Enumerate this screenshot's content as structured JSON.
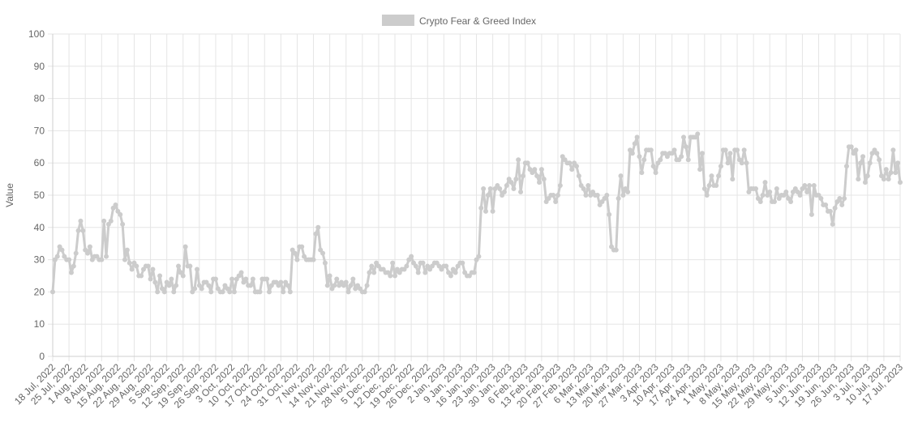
{
  "chart_data": {
    "type": "line",
    "y_axis_label": "Value",
    "ylim": [
      0,
      100
    ],
    "yticks": [
      0,
      10,
      20,
      30,
      40,
      50,
      60,
      70,
      80,
      90,
      100
    ],
    "grid": true,
    "legend_position": "top",
    "categories": [
      "18 Jul, 2022",
      null,
      null,
      null,
      null,
      null,
      null,
      "25 Jul, 2022",
      null,
      null,
      null,
      null,
      null,
      null,
      "1 Aug, 2022",
      null,
      null,
      null,
      null,
      null,
      null,
      "8 Aug, 2022",
      null,
      null,
      null,
      null,
      null,
      null,
      "15 Aug, 2022",
      null,
      null,
      null,
      null,
      null,
      null,
      "22 Aug, 2022",
      null,
      null,
      null,
      null,
      null,
      null,
      "29 Aug, 2022",
      null,
      null,
      null,
      null,
      null,
      null,
      "5 Sep, 2022",
      null,
      null,
      null,
      null,
      null,
      null,
      "12 Sep, 2022",
      null,
      null,
      null,
      null,
      null,
      null,
      "19 Sep, 2022",
      null,
      null,
      null,
      null,
      null,
      null,
      "26 Sep, 2022",
      null,
      null,
      null,
      null,
      null,
      null,
      "3 Oct, 2022",
      null,
      null,
      null,
      null,
      null,
      null,
      "10 Oct, 2022",
      null,
      null,
      null,
      null,
      null,
      null,
      "17 Oct, 2022",
      null,
      null,
      null,
      null,
      null,
      null,
      "24 Oct, 2022",
      null,
      null,
      null,
      null,
      null,
      null,
      "31 Oct, 2022",
      null,
      null,
      null,
      null,
      null,
      null,
      "7 Nov, 2022",
      null,
      null,
      null,
      null,
      null,
      null,
      "14 Nov, 2022",
      null,
      null,
      null,
      null,
      null,
      null,
      "21 Nov, 2022",
      null,
      null,
      null,
      null,
      null,
      null,
      "28 Nov, 2022",
      null,
      null,
      null,
      null,
      null,
      null,
      "5 Dec, 2022",
      null,
      null,
      null,
      null,
      null,
      null,
      "12 Dec, 2022",
      null,
      null,
      null,
      null,
      null,
      null,
      "19 Dec, 2022",
      null,
      null,
      null,
      null,
      null,
      null,
      "26 Dec, 2022",
      null,
      null,
      null,
      null,
      null,
      null,
      "2 Jan, 2023",
      null,
      null,
      null,
      null,
      null,
      null,
      "9 Jan, 2023",
      null,
      null,
      null,
      null,
      null,
      null,
      "16 Jan, 2023",
      null,
      null,
      null,
      null,
      null,
      null,
      "23 Jan, 2023",
      null,
      null,
      null,
      null,
      null,
      null,
      "30 Jan, 2023",
      null,
      null,
      null,
      null,
      null,
      null,
      "6 Feb, 2023",
      null,
      null,
      null,
      null,
      null,
      null,
      "13 Feb, 2023",
      null,
      null,
      null,
      null,
      null,
      null,
      "20 Feb, 2023",
      null,
      null,
      null,
      null,
      null,
      null,
      "27 Feb, 2023",
      null,
      null,
      null,
      null,
      null,
      null,
      "6 Mar, 2023",
      null,
      null,
      null,
      null,
      null,
      null,
      "13 Mar, 2023",
      null,
      null,
      null,
      null,
      null,
      null,
      "20 Mar, 2023",
      null,
      null,
      null,
      null,
      null,
      null,
      "27 Mar, 2023",
      null,
      null,
      null,
      null,
      null,
      null,
      "3 Apr, 2023",
      null,
      null,
      null,
      null,
      null,
      null,
      "10 Apr, 2023",
      null,
      null,
      null,
      null,
      null,
      null,
      "17 Apr, 2023",
      null,
      null,
      null,
      null,
      null,
      null,
      "24 Apr, 2023",
      null,
      null,
      null,
      null,
      null,
      null,
      "1 May, 2023",
      null,
      null,
      null,
      null,
      null,
      null,
      "8 May, 2023",
      null,
      null,
      null,
      null,
      null,
      null,
      "15 May, 2023",
      null,
      null,
      null,
      null,
      null,
      null,
      "22 May, 2023",
      null,
      null,
      null,
      null,
      null,
      null,
      "29 May, 2023",
      null,
      null,
      null,
      null,
      null,
      null,
      "5 Jun, 2023",
      null,
      null,
      null,
      null,
      null,
      null,
      "12 Jun, 2023",
      null,
      null,
      null,
      null,
      null,
      null,
      "19 Jun, 2023",
      null,
      null,
      null,
      null,
      null,
      null,
      "26 Jun, 2023",
      null,
      null,
      null,
      null,
      null,
      null,
      "3 Jul, 2023",
      null,
      null,
      null,
      null,
      null,
      null,
      "10 Jul, 2023",
      null,
      null,
      null,
      null,
      null,
      null,
      "17 Jul, 2023"
    ],
    "series": [
      {
        "name": "Crypto Fear & Greed Index",
        "color": "#cccccc",
        "values": [
          20,
          30,
          31,
          34,
          33,
          31,
          30,
          30,
          26,
          28,
          32,
          39,
          42,
          39,
          33,
          32,
          34,
          30,
          31,
          31,
          30,
          30,
          42,
          31,
          41,
          42,
          46,
          47,
          45,
          44,
          41,
          30,
          33,
          29,
          27,
          29,
          28,
          25,
          25,
          27,
          28,
          28,
          24,
          27,
          23,
          20,
          25,
          21,
          20,
          23,
          22,
          24,
          20,
          22,
          28,
          26,
          25,
          34,
          28,
          28,
          20,
          21,
          27,
          22,
          21,
          23,
          23,
          22,
          20,
          24,
          24,
          21,
          20,
          20,
          22,
          21,
          20,
          24,
          20,
          24,
          25,
          26,
          23,
          24,
          22,
          22,
          24,
          20,
          20,
          20,
          24,
          24,
          24,
          20,
          22,
          23,
          23,
          22,
          23,
          20,
          23,
          22,
          20,
          33,
          32,
          30,
          34,
          34,
          31,
          30,
          30,
          30,
          30,
          38,
          40,
          33,
          32,
          29,
          22,
          25,
          21,
          22,
          24,
          22,
          23,
          22,
          23,
          20,
          22,
          24,
          21,
          22,
          21,
          20,
          20,
          22,
          26,
          28,
          26,
          29,
          28,
          27,
          27,
          26,
          26,
          25,
          29,
          25,
          27,
          26,
          27,
          27,
          28,
          30,
          31,
          29,
          28,
          26,
          29,
          29,
          26,
          28,
          27,
          28,
          29,
          29,
          28,
          27,
          28,
          28,
          26,
          25,
          27,
          26,
          28,
          29,
          29,
          26,
          25,
          25,
          26,
          26,
          30,
          31,
          46,
          52,
          45,
          50,
          52,
          45,
          52,
          53,
          52,
          50,
          51,
          53,
          55,
          54,
          52,
          55,
          61,
          51,
          56,
          60,
          60,
          58,
          57,
          58,
          56,
          54,
          58,
          55,
          48,
          49,
          50,
          50,
          48,
          50,
          53,
          62,
          61,
          60,
          60,
          58,
          60,
          59,
          56,
          53,
          52,
          50,
          53,
          50,
          51,
          50,
          50,
          47,
          48,
          49,
          50,
          44,
          34,
          33,
          33,
          49,
          56,
          50,
          52,
          51,
          64,
          63,
          66,
          68,
          62,
          57,
          61,
          64,
          64,
          64,
          59,
          57,
          60,
          61,
          63,
          63,
          62,
          63,
          63,
          64,
          61,
          61,
          62,
          68,
          65,
          61,
          68,
          68,
          68,
          69,
          58,
          63,
          52,
          50,
          53,
          56,
          53,
          53,
          56,
          59,
          64,
          64,
          60,
          63,
          55,
          64,
          64,
          61,
          60,
          64,
          60,
          51,
          52,
          52,
          52,
          49,
          48,
          50,
          54,
          50,
          51,
          48,
          48,
          52,
          49,
          50,
          50,
          51,
          49,
          48,
          51,
          52,
          51,
          50,
          52,
          53,
          51,
          53,
          44,
          53,
          50,
          50,
          49,
          47,
          47,
          45,
          45,
          41,
          46,
          48,
          49,
          47,
          49,
          59,
          65,
          65,
          63,
          64,
          55,
          60,
          62,
          54,
          56,
          60,
          63,
          64,
          63,
          61,
          56,
          55,
          58,
          55,
          57,
          64,
          57,
          60,
          54
        ]
      }
    ]
  }
}
